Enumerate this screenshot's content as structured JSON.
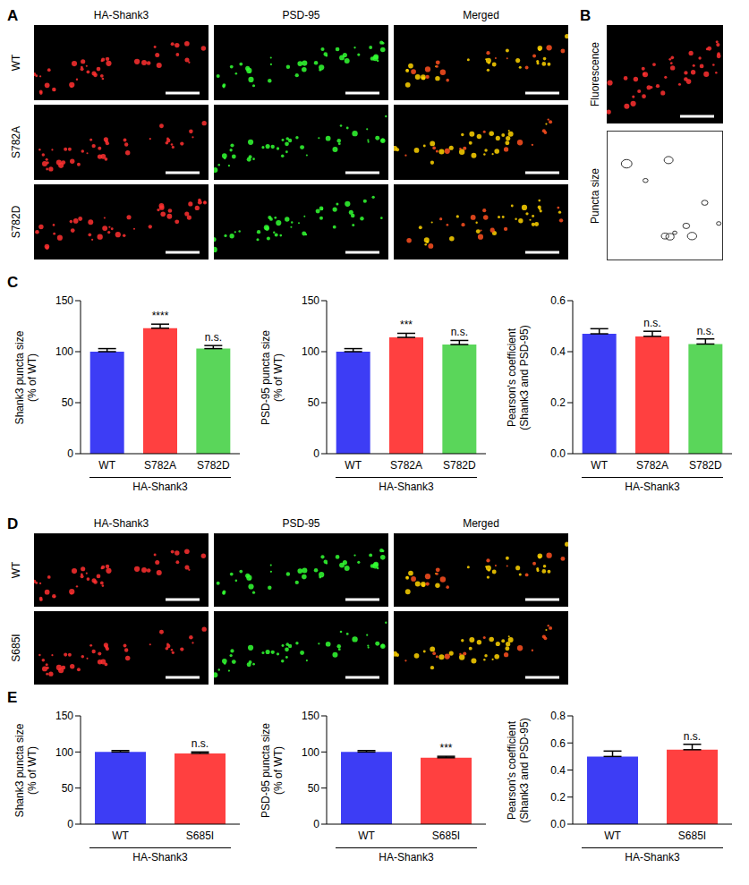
{
  "panels": [
    {
      "letter": "A",
      "columns": [
        "HA-Shank3",
        "PSD-95",
        "Merged"
      ],
      "rows": [
        "WT",
        "S782A",
        "S782D"
      ]
    },
    {
      "letter": "B",
      "rows": [
        "Fluorescence",
        "Puncta size"
      ]
    },
    {
      "letter": "C"
    },
    {
      "letter": "D",
      "columns": [
        "HA-Shank3",
        "PSD-95",
        "Merged"
      ],
      "rows": [
        "WT",
        "S685I"
      ]
    },
    {
      "letter": "E"
    }
  ],
  "chart_data": [
    {
      "panel": "C",
      "type": "bar",
      "ylabel": [
        "Shank3 puncta size",
        "(% of WT)"
      ],
      "categories": [
        "WT",
        "S782A",
        "S782D"
      ],
      "values": [
        100,
        123,
        103
      ],
      "errors": [
        3,
        4,
        3
      ],
      "annotations": [
        null,
        "****",
        "n.s."
      ],
      "colors": [
        "#3d3df5",
        "#ff4040",
        "#5ad65a"
      ],
      "group_label": "HA-Shank3",
      "ylim": [
        0,
        150
      ],
      "yticks": [
        0,
        50,
        100,
        150
      ]
    },
    {
      "panel": "C",
      "type": "bar",
      "ylabel": [
        "PSD-95 puncta size",
        "(% of WT)"
      ],
      "categories": [
        "WT",
        "S782A",
        "S782D"
      ],
      "values": [
        100,
        114,
        107
      ],
      "errors": [
        3,
        4,
        4
      ],
      "annotations": [
        null,
        "***",
        "n.s."
      ],
      "colors": [
        "#3d3df5",
        "#ff4040",
        "#5ad65a"
      ],
      "group_label": "HA-Shank3",
      "ylim": [
        0,
        150
      ],
      "yticks": [
        0,
        50,
        100,
        150
      ]
    },
    {
      "panel": "C",
      "type": "bar",
      "ylabel": [
        "Pearson's coefficient",
        "(Shank3 and PSD-95)"
      ],
      "categories": [
        "WT",
        "S782A",
        "S782D"
      ],
      "values": [
        0.47,
        0.46,
        0.43
      ],
      "errors": [
        0.02,
        0.02,
        0.02
      ],
      "annotations": [
        null,
        "n.s.",
        "n.s."
      ],
      "colors": [
        "#3d3df5",
        "#ff4040",
        "#5ad65a"
      ],
      "group_label": "HA-Shank3",
      "ylim": [
        0,
        0.6
      ],
      "yticks": [
        {
          "value": 0,
          "label": "0.0"
        },
        0.2,
        0.4,
        0.6
      ]
    },
    {
      "panel": "E",
      "type": "bar",
      "ylabel": [
        "Shank3 puncta size",
        "(% of WT)"
      ],
      "categories": [
        "WT",
        "S685I"
      ],
      "values": [
        100,
        98
      ],
      "errors": [
        2,
        2
      ],
      "annotations": [
        null,
        "n.s."
      ],
      "colors": [
        "#3d3df5",
        "#ff4040"
      ],
      "group_label": "HA-Shank3",
      "ylim": [
        0,
        150
      ],
      "yticks": [
        0,
        50,
        100,
        150
      ]
    },
    {
      "panel": "E",
      "type": "bar",
      "ylabel": [
        "PSD-95 puncta size",
        "(% of WT)"
      ],
      "categories": [
        "WT",
        "S685I"
      ],
      "values": [
        100,
        92
      ],
      "errors": [
        2,
        2
      ],
      "annotations": [
        null,
        "***"
      ],
      "colors": [
        "#3d3df5",
        "#ff4040"
      ],
      "group_label": "HA-Shank3",
      "ylim": [
        0,
        150
      ],
      "yticks": [
        0,
        50,
        100,
        150
      ]
    },
    {
      "panel": "E",
      "type": "bar",
      "ylabel": [
        "Pearson's coefficient",
        "(Shank3 and PSD-95)"
      ],
      "categories": [
        "WT",
        "S685I"
      ],
      "values": [
        0.5,
        0.55
      ],
      "errors": [
        0.04,
        0.04
      ],
      "annotations": [
        null,
        "n.s."
      ],
      "colors": [
        "#3d3df5",
        "#ff4040"
      ],
      "group_label": "HA-Shank3",
      "ylim": [
        0,
        0.8
      ],
      "yticks": [
        {
          "value": 0,
          "label": "0.0"
        },
        0.2,
        0.4,
        0.6,
        0.8
      ]
    }
  ]
}
